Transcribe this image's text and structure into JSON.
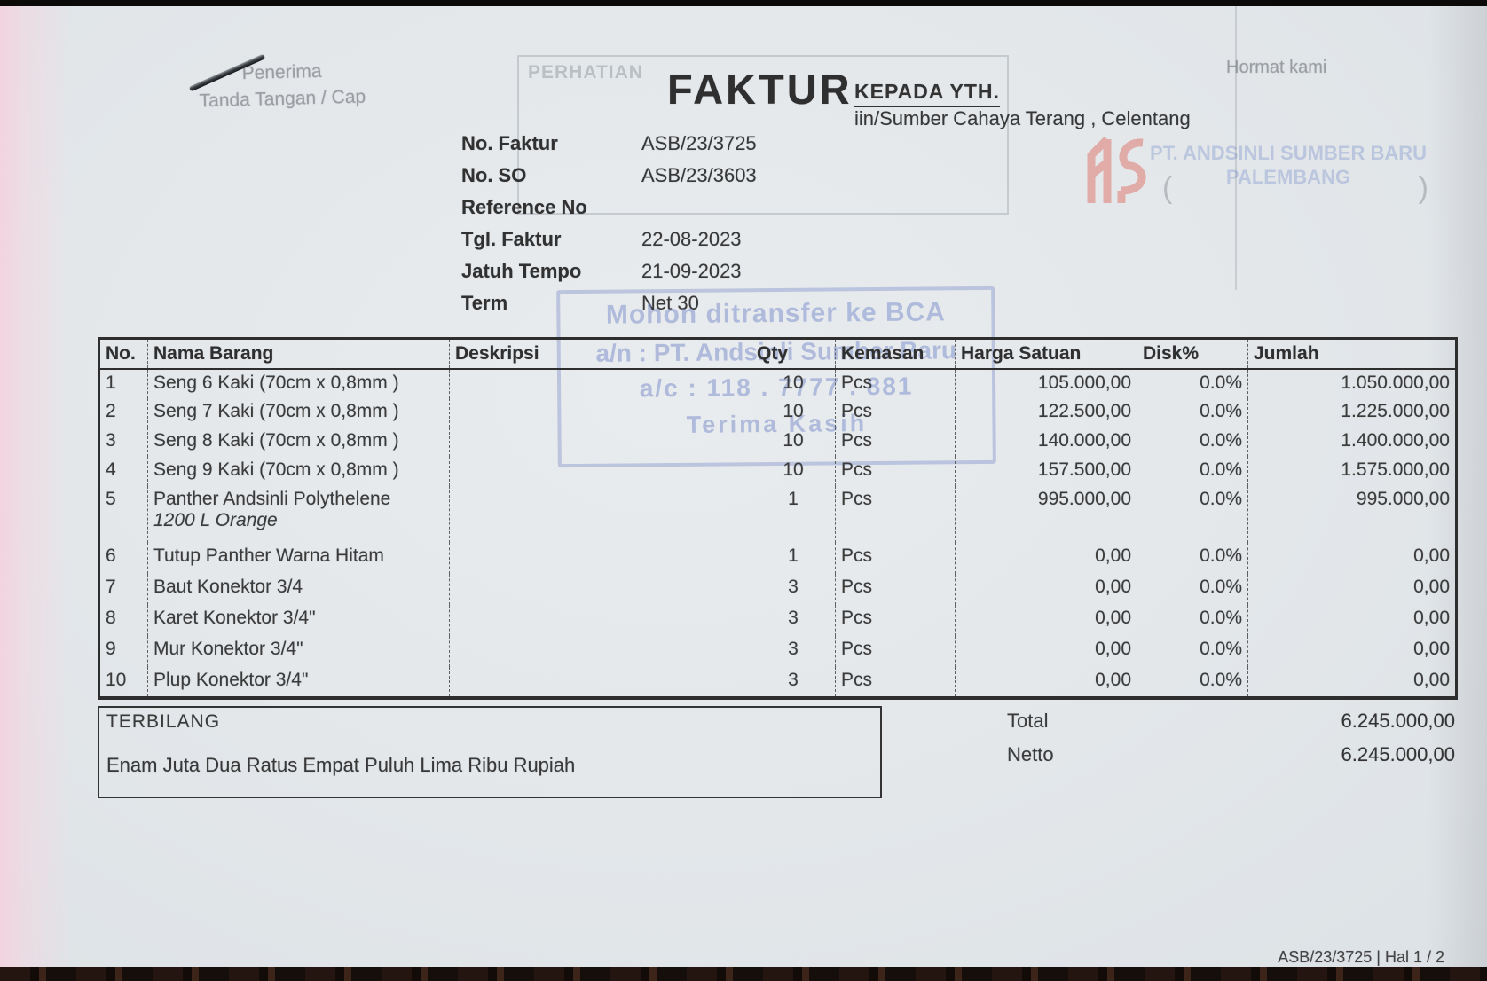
{
  "header": {
    "penerima_label": "Penerima",
    "tanda_tangan_label": "Tanda Tangan / Cap",
    "perhatian_label": "PERHATIAN",
    "title": "FAKTUR",
    "kepada_label": "KEPADA YTH.",
    "customer": "iin/Sumber Cahaya Terang , Celentang",
    "hormat_kami_label": "Hormat kami",
    "company_stamp_line1": "PT. ANDSINLI SUMBER BARU",
    "company_stamp_line2": "PALEMBANG",
    "paren_left": "(",
    "paren_right": ")"
  },
  "meta": {
    "rows": [
      {
        "label": "No. Faktur",
        "value": "ASB/23/3725"
      },
      {
        "label": "No. SO",
        "value": "ASB/23/3603"
      },
      {
        "label": "Reference No",
        "value": ""
      },
      {
        "label": "Tgl. Faktur",
        "value": "22-08-2023"
      },
      {
        "label": "Jatuh Tempo",
        "value": "21-09-2023"
      },
      {
        "label": "Term",
        "value": "Net 30"
      }
    ]
  },
  "transfer_stamp": {
    "line1": "Mohon ditransfer ke BCA",
    "line2": "a/n : PT. Andsinli Sumber Baru",
    "line3": "a/c : 118 . 7777 . 881",
    "line4": "Terima Kasih"
  },
  "table": {
    "columns": [
      "No.",
      "Nama Barang",
      "Deskripsi",
      "Qty",
      "Kemasan",
      "Harga Satuan",
      "Disk%",
      "Jumlah"
    ],
    "rows": [
      {
        "no": "1",
        "name": "Seng 6 Kaki (70cm x 0,8mm )",
        "name2": "",
        "desc": "",
        "qty": "10",
        "kemasan": "Pcs",
        "harga": "105.000,00",
        "disk": "0.0%",
        "jumlah": "1.050.000,00"
      },
      {
        "no": "2",
        "name": "Seng 7 Kaki (70cm x 0,8mm )",
        "name2": "",
        "desc": "",
        "qty": "10",
        "kemasan": "Pcs",
        "harga": "122.500,00",
        "disk": "0.0%",
        "jumlah": "1.225.000,00"
      },
      {
        "no": "3",
        "name": "Seng 8 Kaki (70cm x 0,8mm )",
        "name2": "",
        "desc": "",
        "qty": "10",
        "kemasan": "Pcs",
        "harga": "140.000,00",
        "disk": "0.0%",
        "jumlah": "1.400.000,00"
      },
      {
        "no": "4",
        "name": "Seng 9 Kaki (70cm x 0,8mm )",
        "name2": "",
        "desc": "",
        "qty": "10",
        "kemasan": "Pcs",
        "harga": "157.500,00",
        "disk": "0.0%",
        "jumlah": "1.575.000,00"
      },
      {
        "no": "5",
        "name": "Panther Andsinli Polythelene",
        "name2": "1200 L Orange",
        "desc": "",
        "qty": "1",
        "kemasan": "Pcs",
        "harga": "995.000,00",
        "disk": "0.0%",
        "jumlah": "995.000,00"
      },
      {
        "no": "6",
        "name": "Tutup Panther Warna Hitam",
        "name2": "",
        "desc": "",
        "qty": "1",
        "kemasan": "Pcs",
        "harga": "0,00",
        "disk": "0.0%",
        "jumlah": "0,00"
      },
      {
        "no": "7",
        "name": "Baut Konektor 3/4",
        "name2": "",
        "desc": "",
        "qty": "3",
        "kemasan": "Pcs",
        "harga": "0,00",
        "disk": "0.0%",
        "jumlah": "0,00"
      },
      {
        "no": "8",
        "name": "Karet Konektor 3/4\"",
        "name2": "",
        "desc": "",
        "qty": "3",
        "kemasan": "Pcs",
        "harga": "0,00",
        "disk": "0.0%",
        "jumlah": "0,00"
      },
      {
        "no": "9",
        "name": "Mur Konektor 3/4\"",
        "name2": "",
        "desc": "",
        "qty": "3",
        "kemasan": "Pcs",
        "harga": "0,00",
        "disk": "0.0%",
        "jumlah": "0,00"
      },
      {
        "no": "10",
        "name": "Plup Konektor 3/4\"",
        "name2": "",
        "desc": "",
        "qty": "3",
        "kemasan": "Pcs",
        "harga": "0,00",
        "disk": "0.0%",
        "jumlah": "0,00"
      }
    ]
  },
  "summary": {
    "terbilang_label": "TERBILANG",
    "terbilang_text": "Enam  Juta Dua Ratus Empat Puluh Lima Ribu Rupiah",
    "total_label": "Total",
    "total_value": "6.245.000,00",
    "netto_label": "Netto",
    "netto_value": "6.245.000,00"
  },
  "footer": {
    "page_ref": "ASB/23/3725 | Hal 1 / 2"
  },
  "colors": {
    "paper": "#e4e7ea",
    "ink": "#3a3a3a",
    "faint_gray": "#8a9096",
    "stamp_blue": "#8fa0cf",
    "stamp_red": "#e09088",
    "edge_pink": "#f4d6de",
    "scan_edge": "#0c0a08"
  }
}
